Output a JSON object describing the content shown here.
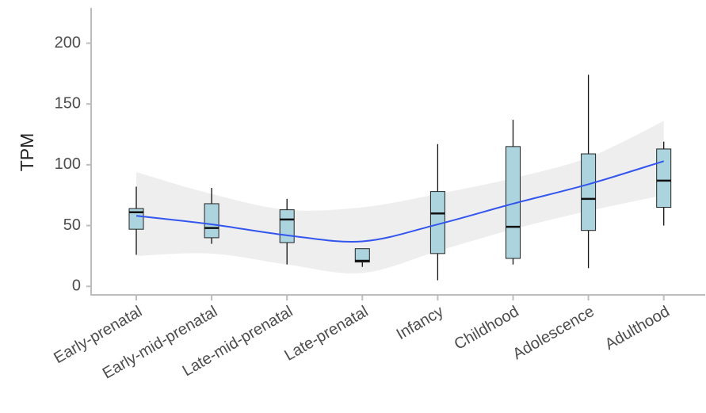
{
  "chart_data": {
    "type": "box",
    "y_label": "TPM",
    "categories": [
      "Early-prenatal",
      "Early-mid-prenatal",
      "Late-mid-prenatal",
      "Late-prenatal",
      "Infancy",
      "Childhood",
      "Adolescence",
      "Adulthood"
    ],
    "box_color": "#acd4df",
    "boxes": [
      {
        "min": 26,
        "q1": 47,
        "median": 61,
        "q3": 64,
        "max": 82
      },
      {
        "min": 35,
        "q1": 40,
        "median": 48,
        "q3": 68,
        "max": 81
      },
      {
        "min": 18,
        "q1": 36,
        "median": 55,
        "q3": 63,
        "max": 72
      },
      {
        "min": 16,
        "q1": 20,
        "median": 21,
        "q3": 31,
        "max": 31
      },
      {
        "min": 5,
        "q1": 27,
        "median": 60,
        "q3": 78,
        "max": 117
      },
      {
        "min": 18,
        "q1": 23,
        "median": 49,
        "q3": 115,
        "max": 137
      },
      {
        "min": 15,
        "q1": 46,
        "median": 72,
        "q3": 109,
        "max": 174
      },
      {
        "min": 50,
        "q1": 65,
        "median": 87,
        "q3": 113,
        "max": 119
      }
    ],
    "smooth": {
      "color": "#3355ee",
      "band_color": "#d9d9d9",
      "values": [
        58,
        51,
        42,
        37,
        51,
        68,
        84,
        103
      ],
      "upper": [
        94,
        76,
        63,
        65,
        76,
        89,
        106,
        136
      ],
      "lower": [
        25,
        27,
        18,
        11,
        29,
        47,
        62,
        75
      ]
    },
    "ylim": [
      -7,
      229
    ],
    "yticks": [
      0,
      50,
      100,
      150,
      200
    ]
  }
}
